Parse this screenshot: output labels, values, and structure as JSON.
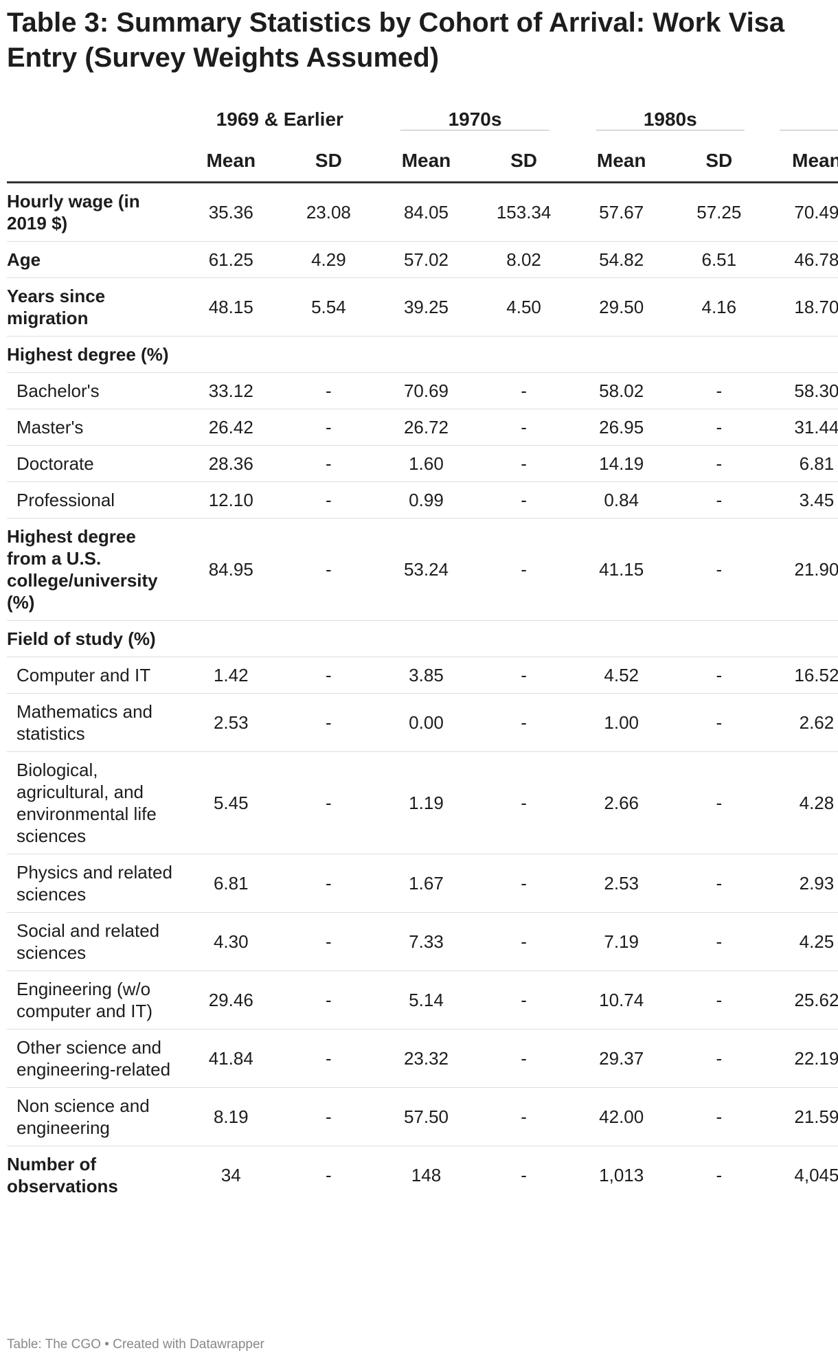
{
  "table": {
    "title": "Table 3: Summary Statistics by Cohort of Arrival: Work Visa Entry (Survey Weights Assumed)",
    "groups": [
      "1969 & Earlier",
      "1970s",
      "1980s"
    ],
    "columns": [
      "Mean",
      "SD",
      "Mean",
      "SD",
      "Mean",
      "SD",
      "Mean"
    ],
    "rows": [
      {
        "label": "Hourly wage (in 2019 $)",
        "values": [
          "35.36",
          "23.08",
          "84.05",
          "153.34",
          "57.67",
          "57.25",
          "70.49"
        ]
      },
      {
        "label": "Age",
        "values": [
          "61.25",
          "4.29",
          "57.02",
          "8.02",
          "54.82",
          "6.51",
          "46.78"
        ]
      },
      {
        "label": "Years since migration",
        "values": [
          "48.15",
          "5.54",
          "39.25",
          "4.50",
          "29.50",
          "4.16",
          "18.70"
        ]
      },
      {
        "label": "Highest degree (%)"
      },
      {
        "label": "Bachelor's",
        "sub": true,
        "values": [
          "33.12",
          "-",
          "70.69",
          "-",
          "58.02",
          "-",
          "58.30"
        ]
      },
      {
        "label": "Master's",
        "sub": true,
        "values": [
          "26.42",
          "-",
          "26.72",
          "-",
          "26.95",
          "-",
          "31.44"
        ]
      },
      {
        "label": "Doctorate",
        "sub": true,
        "values": [
          "28.36",
          "-",
          "1.60",
          "-",
          "14.19",
          "-",
          "6.81"
        ]
      },
      {
        "label": "Professional",
        "sub": true,
        "values": [
          "12.10",
          "-",
          "0.99",
          "-",
          "0.84",
          "-",
          "3.45"
        ]
      },
      {
        "label": "Highest degree from a U.S. college/university (%)",
        "values": [
          "84.95",
          "-",
          "53.24",
          "-",
          "41.15",
          "-",
          "21.90"
        ]
      },
      {
        "label": "Field of study (%)"
      },
      {
        "label": "Computer and IT",
        "sub": true,
        "values": [
          "1.42",
          "-",
          "3.85",
          "-",
          "4.52",
          "-",
          "16.52"
        ]
      },
      {
        "label": "Mathematics and statistics",
        "sub": true,
        "values": [
          "2.53",
          "-",
          "0.00",
          "-",
          "1.00",
          "-",
          "2.62"
        ]
      },
      {
        "label": "Biological, agricultural, and environmental life sciences",
        "sub": true,
        "values": [
          "5.45",
          "-",
          "1.19",
          "-",
          "2.66",
          "-",
          "4.28"
        ]
      },
      {
        "label": "Physics and related sciences",
        "sub": true,
        "values": [
          "6.81",
          "-",
          "1.67",
          "-",
          "2.53",
          "-",
          "2.93"
        ]
      },
      {
        "label": "Social and related sciences",
        "sub": true,
        "values": [
          "4.30",
          "-",
          "7.33",
          "-",
          "7.19",
          "-",
          "4.25"
        ]
      },
      {
        "label": "Engineering (w/o computer and IT)",
        "sub": true,
        "values": [
          "29.46",
          "-",
          "5.14",
          "-",
          "10.74",
          "-",
          "25.62"
        ]
      },
      {
        "label": "Other science and engineering-related",
        "sub": true,
        "values": [
          "41.84",
          "-",
          "23.32",
          "-",
          "29.37",
          "-",
          "22.19"
        ]
      },
      {
        "label": "Non science and engineering",
        "sub": true,
        "values": [
          "8.19",
          "-",
          "57.50",
          "-",
          "42.00",
          "-",
          "21.59"
        ]
      },
      {
        "label": "Number of observations",
        "values": [
          "34",
          "-",
          "148",
          "-",
          "1,013",
          "-",
          "4,045"
        ]
      }
    ],
    "footer": "Table: The CGO • Created with Datawrapper"
  }
}
